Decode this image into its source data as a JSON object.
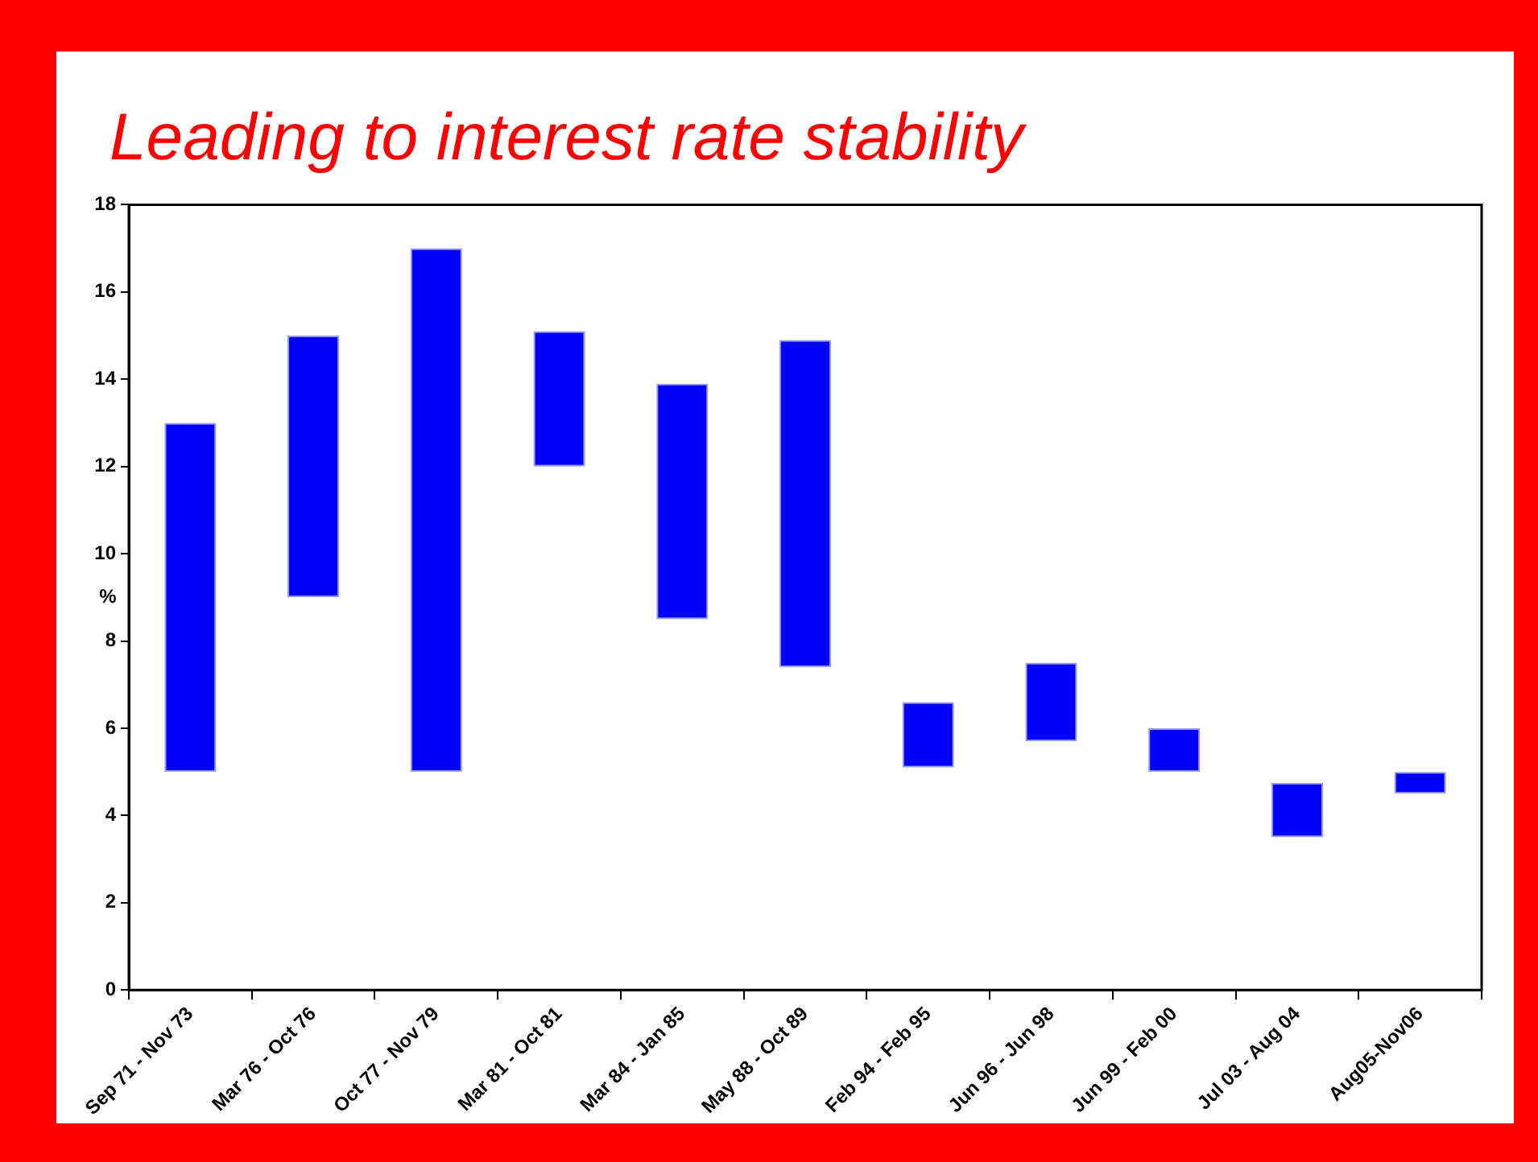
{
  "chart_data": {
    "type": "bar",
    "title": "Leading to interest rate stability",
    "ylabel": "%",
    "categories": [
      "Sep 71 - Nov 73",
      "Mar 76 - Oct 76",
      "Oct 77 - Nov 79",
      "Mar 81 - Oct 81",
      "Mar 84 - Jan 85",
      "May 88 - Oct 89",
      "Feb 94 - Feb 95",
      "Jun 96 - Jun 98",
      "Jun 99 - Feb 00",
      "Jul 03 - Aug 04",
      "Aug05-Nov06"
    ],
    "base": [
      5,
      9,
      5,
      12,
      8.5,
      7.4,
      5.1,
      5.7,
      5,
      3.5,
      4.5
    ],
    "values": [
      8,
      6,
      12,
      3.1,
      5.4,
      7.5,
      1.5,
      1.8,
      1,
      1.25,
      0.5
    ],
    "color": "#0000ff",
    "ylim": [
      0,
      18
    ],
    "yticks": [
      0,
      2,
      4,
      6,
      8,
      10,
      12,
      14,
      16,
      18
    ],
    "grid": false,
    "legend": false
  }
}
